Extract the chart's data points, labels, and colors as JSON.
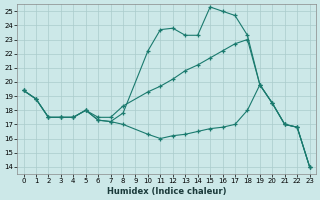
{
  "xlabel": "Humidex (Indice chaleur)",
  "bg_color": "#cce8e8",
  "grid_color": "#aacccc",
  "line_color": "#1a7a6e",
  "xlim": [
    -0.5,
    23.5
  ],
  "ylim": [
    13.5,
    25.5
  ],
  "line1_x": [
    0,
    1,
    2,
    3,
    4,
    5,
    6,
    7,
    8,
    10,
    11,
    12,
    13,
    14,
    15,
    16,
    17,
    18,
    19,
    20,
    21,
    22,
    23
  ],
  "line1_y": [
    19.4,
    18.8,
    17.5,
    17.5,
    17.5,
    18.0,
    17.3,
    17.2,
    17.8,
    22.2,
    23.7,
    23.8,
    23.3,
    23.3,
    25.3,
    25.0,
    24.7,
    23.3,
    19.8,
    18.5,
    17.0,
    16.8,
    14.0
  ],
  "line2_x": [
    0,
    1,
    2,
    3,
    4,
    5,
    6,
    7,
    8,
    10,
    11,
    12,
    13,
    14,
    15,
    16,
    17,
    18,
    19,
    20,
    21,
    22,
    23
  ],
  "line2_y": [
    19.4,
    18.8,
    17.5,
    17.5,
    17.5,
    18.0,
    17.5,
    17.5,
    18.3,
    19.3,
    19.7,
    20.2,
    20.8,
    21.2,
    21.7,
    22.2,
    22.7,
    23.0,
    19.8,
    18.5,
    17.0,
    16.8,
    14.0
  ],
  "line3_x": [
    0,
    1,
    2,
    3,
    4,
    5,
    6,
    7,
    8,
    10,
    11,
    12,
    13,
    14,
    15,
    16,
    17,
    18,
    19,
    20,
    21,
    22,
    23
  ],
  "line3_y": [
    19.4,
    18.8,
    17.5,
    17.5,
    17.5,
    18.0,
    17.3,
    17.2,
    17.0,
    16.3,
    16.0,
    16.2,
    16.3,
    16.5,
    16.7,
    16.8,
    17.0,
    18.0,
    19.8,
    18.5,
    17.0,
    16.8,
    14.0
  ]
}
